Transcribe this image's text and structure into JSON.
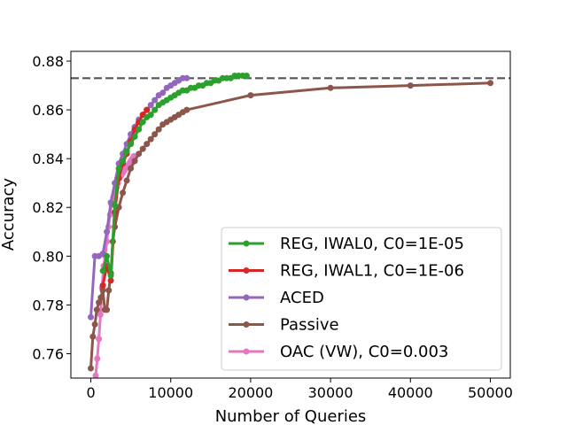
{
  "chart_data": {
    "type": "line",
    "xlabel": "Number of Queries",
    "ylabel": "Accuracy",
    "xlim": [
      -2500,
      52500
    ],
    "ylim": [
      0.75,
      0.884
    ],
    "xticks": [
      0,
      10000,
      20000,
      30000,
      40000,
      50000
    ],
    "yticks": [
      0.76,
      0.78,
      0.8,
      0.82,
      0.84,
      0.86,
      0.88
    ],
    "ytick_labels": [
      "0.76",
      "0.78",
      "0.80",
      "0.82",
      "0.84",
      "0.86",
      "0.88"
    ],
    "reference_line": {
      "y": 0.873,
      "style": "dashed",
      "color": "#555555"
    },
    "grid": false,
    "legend_position": "lower-right",
    "series": [
      {
        "name": "REG, IWAL0, C0=1E-05",
        "color": "#2ca02c",
        "x": [
          1500,
          2000,
          2500,
          3000,
          3500,
          4000,
          4500,
          5000,
          5500,
          6000,
          6500,
          7000,
          7500,
          8000,
          8500,
          9000,
          9500,
          10000,
          10500,
          11000,
          11500,
          12000,
          12500,
          13000,
          13500,
          14000,
          14500,
          15000,
          15500,
          16000,
          16500,
          17000,
          17500,
          18000,
          18500,
          19000,
          19500
        ],
        "y": [
          0.794,
          0.8,
          0.792,
          0.821,
          0.836,
          0.839,
          0.843,
          0.846,
          0.849,
          0.852,
          0.855,
          0.857,
          0.858,
          0.86,
          0.862,
          0.863,
          0.864,
          0.865,
          0.866,
          0.867,
          0.868,
          0.868,
          0.869,
          0.869,
          0.87,
          0.87,
          0.871,
          0.871,
          0.872,
          0.872,
          0.873,
          0.873,
          0.873,
          0.874,
          0.874,
          0.874,
          0.874
        ]
      },
      {
        "name": "REG, IWAL1, C0=1E-06",
        "color": "#d62728",
        "x": [
          1500,
          2000,
          2500,
          3000,
          3500,
          4000,
          4500,
          5000,
          5500,
          6000,
          6500,
          7000
        ],
        "y": [
          0.788,
          0.796,
          0.79,
          0.818,
          0.832,
          0.838,
          0.842,
          0.847,
          0.852,
          0.855,
          0.858,
          0.86
        ]
      },
      {
        "name": "ACED",
        "color": "#9467bd",
        "x": [
          0,
          500,
          1000,
          1500,
          2000,
          2500,
          3000,
          3500,
          4000,
          4500,
          5000,
          5500,
          6000,
          6500,
          7000,
          7500,
          8000,
          8500,
          9000,
          9500,
          10000,
          10500,
          11000,
          11500,
          12000
        ],
        "y": [
          0.775,
          0.8,
          0.8,
          0.801,
          0.81,
          0.822,
          0.83,
          0.838,
          0.842,
          0.846,
          0.85,
          0.853,
          0.856,
          0.858,
          0.86,
          0.862,
          0.864,
          0.866,
          0.867,
          0.869,
          0.87,
          0.871,
          0.872,
          0.873,
          0.873
        ]
      },
      {
        "name": "Passive",
        "color": "#8c564b",
        "x": [
          0,
          250,
          500,
          750,
          1000,
          1250,
          1500,
          1750,
          2000,
          2250,
          2500,
          2750,
          3000,
          3500,
          4000,
          4500,
          5000,
          5500,
          6000,
          6500,
          7000,
          7500,
          8000,
          8500,
          9000,
          9500,
          10000,
          10500,
          11000,
          11500,
          12000,
          20000,
          30000,
          40000,
          50000
        ],
        "y": [
          0.754,
          0.767,
          0.772,
          0.778,
          0.781,
          0.783,
          0.786,
          0.778,
          0.778,
          0.786,
          0.793,
          0.806,
          0.812,
          0.82,
          0.826,
          0.831,
          0.836,
          0.839,
          0.842,
          0.844,
          0.846,
          0.848,
          0.85,
          0.852,
          0.854,
          0.855,
          0.856,
          0.857,
          0.858,
          0.859,
          0.86,
          0.866,
          0.869,
          0.87,
          0.871
        ]
      },
      {
        "name": "OAC (VW), C0=0.003",
        "color": "#e377c2",
        "x": [
          600,
          800,
          1000,
          1200,
          1400,
          1600,
          1800,
          2000,
          2200,
          2400,
          2600,
          2800,
          3000,
          3200,
          3400,
          3600,
          3800,
          4000,
          4200,
          4400,
          4600,
          4800,
          5000,
          5200,
          5400
        ],
        "y": [
          0.751,
          0.758,
          0.766,
          0.776,
          0.787,
          0.796,
          0.8,
          0.806,
          0.812,
          0.817,
          0.821,
          0.824,
          0.826,
          0.828,
          0.83,
          0.832,
          0.833,
          0.834,
          0.835,
          0.836,
          0.837,
          0.838,
          0.839,
          0.84,
          0.841
        ]
      }
    ]
  }
}
